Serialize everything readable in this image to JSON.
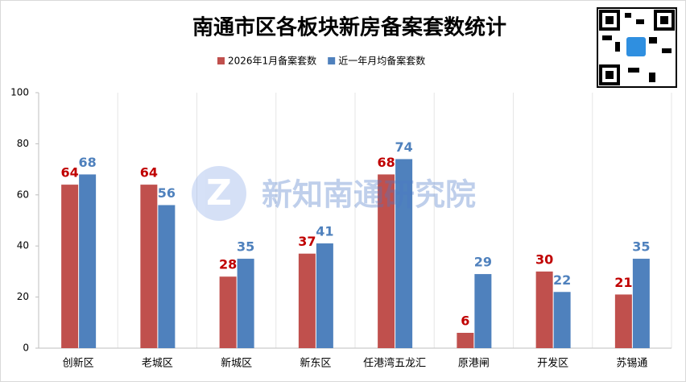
{
  "chart_data": {
    "type": "bar",
    "title": "南通市区各板块新房备案套数统计",
    "watermark": "新知南通研究院",
    "categories": [
      "创新区",
      "老城区",
      "新城区",
      "新东区",
      "任港湾五龙汇",
      "原港闸",
      "开发区",
      "苏锡通"
    ],
    "series": [
      {
        "name": "2026年1月备案套数",
        "color": "#c0504d",
        "label_color": "#c00000",
        "values": [
          64,
          64,
          28,
          37,
          68,
          6,
          30,
          21
        ]
      },
      {
        "name": "近一年月均备案套数",
        "color": "#4f81bd",
        "label_color": "#4f81bd",
        "values": [
          68,
          56,
          35,
          41,
          74,
          29,
          22,
          35
        ]
      }
    ],
    "ylim": [
      0,
      100
    ],
    "yticks": [
      0,
      20,
      40,
      60,
      80,
      100
    ],
    "grid": true,
    "legend": "top"
  }
}
